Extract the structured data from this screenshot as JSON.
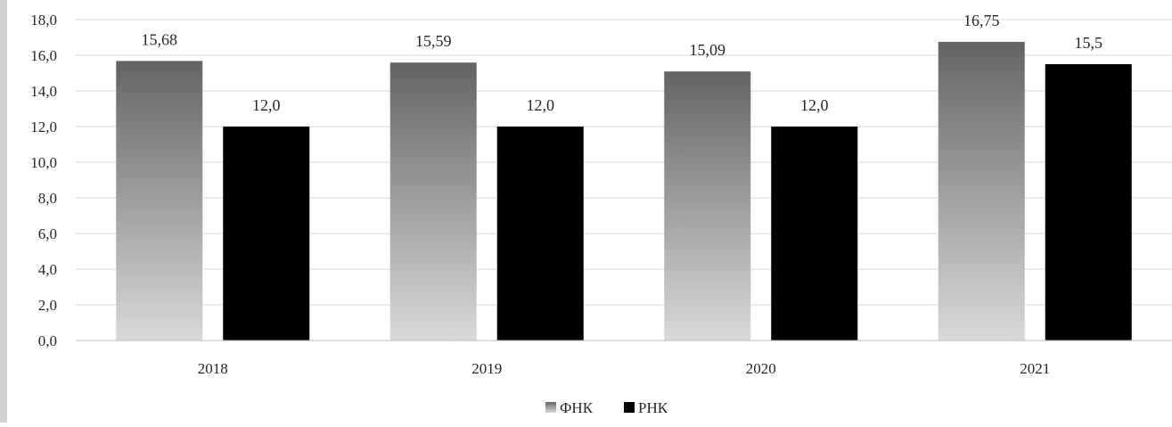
{
  "chart_data": {
    "type": "bar",
    "categories": [
      "2018",
      "2019",
      "2020",
      "2021"
    ],
    "series": [
      {
        "name": "ФНК",
        "values": [
          15.68,
          15.59,
          15.09,
          16.75
        ],
        "labels": [
          "15,68",
          "15,59",
          "15,09",
          "16,75"
        ],
        "color": "gradient-gray"
      },
      {
        "name": "РНК",
        "values": [
          12.0,
          12.0,
          12.0,
          15.5
        ],
        "labels": [
          "12,0",
          "12,0",
          "12,0",
          "15,5"
        ],
        "color": "#000000"
      }
    ],
    "ylim": [
      0,
      18
    ],
    "yticks": [
      "0,0",
      "2,0",
      "4,0",
      "6,0",
      "8,0",
      "10,0",
      "12,0",
      "14,0",
      "16,0",
      "18,0"
    ],
    "grid": true,
    "legend_position": "bottom",
    "title": "",
    "xlabel": "",
    "ylabel": ""
  }
}
